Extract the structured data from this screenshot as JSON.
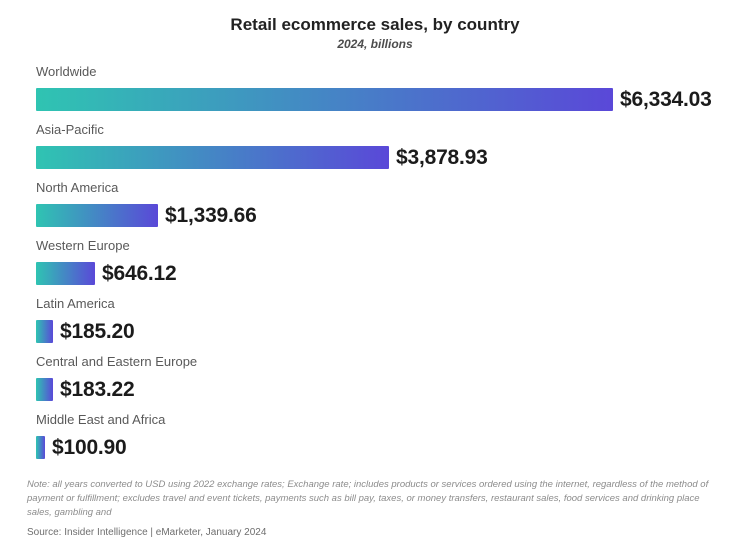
{
  "chart_data": {
    "type": "bar",
    "orientation": "horizontal",
    "title": "Retail ecommerce sales, by country",
    "subtitle": "2024, billions",
    "categories": [
      "Worldwide",
      "Asia-Pacific",
      "North America",
      "Western Europe",
      "Latin America",
      "Central and Eastern Europe",
      "Middle East and Africa"
    ],
    "values": [
      6334.03,
      3878.93,
      1339.66,
      646.12,
      185.2,
      183.22,
      100.9
    ],
    "value_labels": [
      "$6,334.03",
      "$3,878.93",
      "$1,339.66",
      "$646.12",
      "$185.20",
      "$183.22",
      "$100.90"
    ],
    "xlim": [
      0,
      6334.03
    ],
    "bar_gradient_start": "#2fc4b2",
    "bar_gradient_end": "#5a48d8",
    "grid": "off",
    "legend": "none",
    "note": "Note: all years converted to USD using 2022 exchange rates; Exchange rate; includes products or services ordered using the internet, regardless of the method of payment or fulfillment; excludes travel and event tickets, payments such as bill pay, taxes, or money transfers, restaurant sales, food services and drinking place sales, gambling and",
    "source": "Source: Insider Intelligence | eMarketer, January 2024"
  }
}
